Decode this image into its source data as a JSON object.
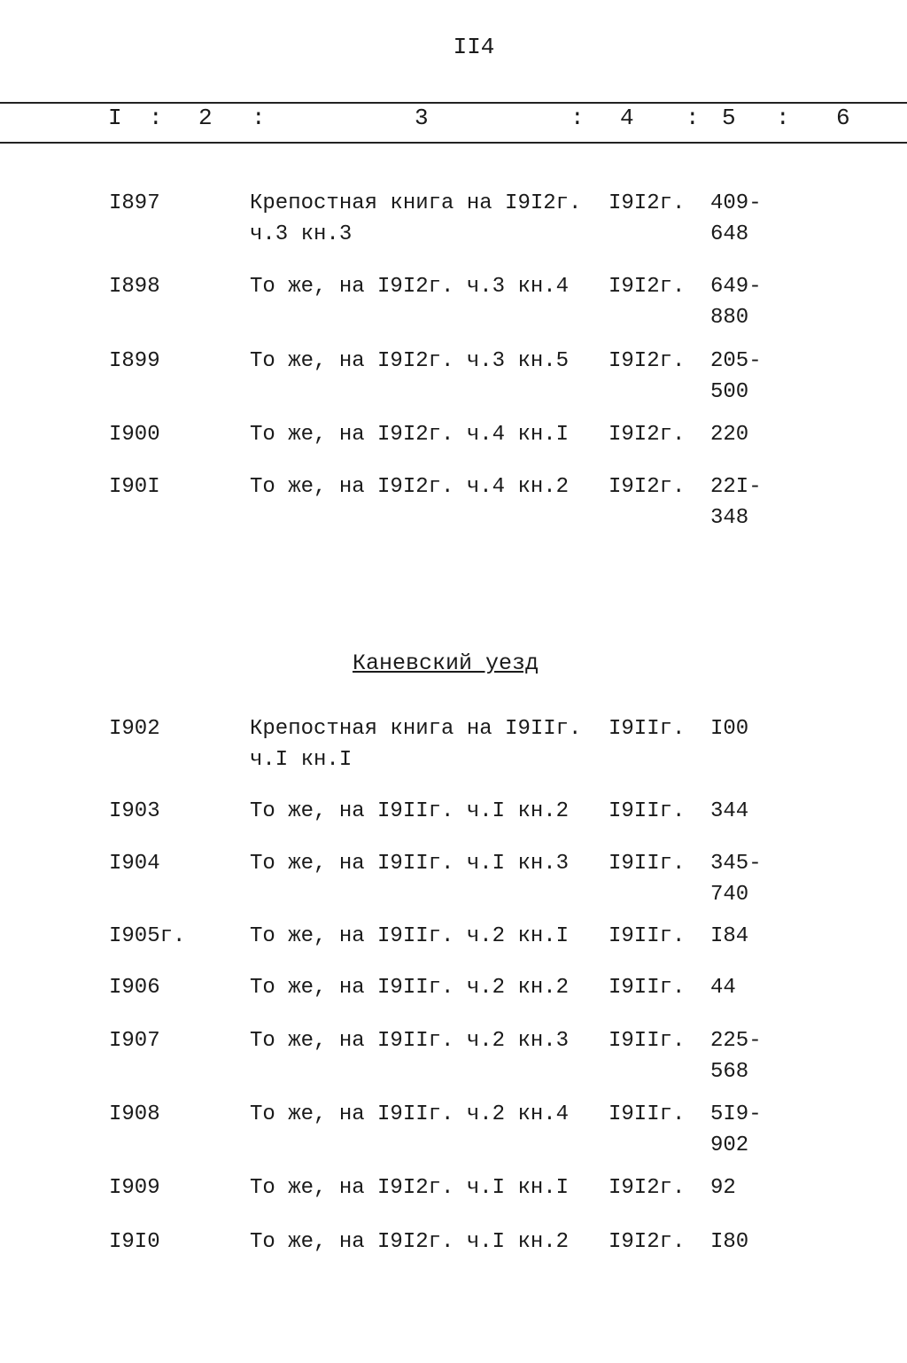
{
  "page_number": "II4",
  "header": {
    "columns": [
      "I",
      ":",
      "2",
      ":",
      "3",
      ":",
      "4",
      ":",
      "5",
      ":",
      "6"
    ]
  },
  "section_title": "Каневский уезд",
  "rows": [
    {
      "no": "I897",
      "title": "Крепостная книга на I9I2г.\nч.3 кн.3",
      "date": "I9I2г.",
      "sheets": "409-\n648"
    },
    {
      "no": "I898",
      "title": "То же, на I9I2г. ч.3 кн.4",
      "date": "I9I2г.",
      "sheets": "649-\n880"
    },
    {
      "no": "I899",
      "title": "То же, на I9I2г. ч.3 кн.5",
      "date": "I9I2г.",
      "sheets": "205-\n500"
    },
    {
      "no": "I900",
      "title": "То же, на I9I2г. ч.4 кн.I",
      "date": "I9I2г.",
      "sheets": "220"
    },
    {
      "no": "I90I",
      "title": "То же, на I9I2г. ч.4 кн.2",
      "date": "I9I2г.",
      "sheets": "22I-\n348"
    },
    {
      "no": "I902",
      "title": "Крепостная книга на I9IIг.\nч.I кн.I",
      "date": "I9IIг.",
      "sheets": "I00"
    },
    {
      "no": "I903",
      "title": "То же, на I9IIг. ч.I кн.2",
      "date": "I9IIг.",
      "sheets": "344"
    },
    {
      "no": "I904",
      "title": "То же, на I9IIг. ч.I кн.3",
      "date": "I9IIг.",
      "sheets": "345-\n740"
    },
    {
      "no": "I905г.",
      "title": "То же, на I9IIг. ч.2 кн.I",
      "date": "I9IIг.",
      "sheets": "I84"
    },
    {
      "no": "I906",
      "title": "То же, на I9IIг. ч.2 кн.2",
      "date": "I9IIг.",
      "sheets": "44"
    },
    {
      "no": "I907",
      "title": "То же, на I9IIг. ч.2 кн.3",
      "date": "I9IIг.",
      "sheets": "225-\n568"
    },
    {
      "no": "I908",
      "title": "То же, на I9IIг. ч.2 кн.4",
      "date": "I9IIг.",
      "sheets": "5I9-\n902"
    },
    {
      "no": "I909",
      "title": "То же, на I9I2г. ч.I кн.I",
      "date": "I9I2г.",
      "sheets": "92"
    },
    {
      "no": "I9I0",
      "title": "То же, на I9I2г. ч.I кн.2",
      "date": "I9I2г.",
      "sheets": "I80"
    }
  ]
}
